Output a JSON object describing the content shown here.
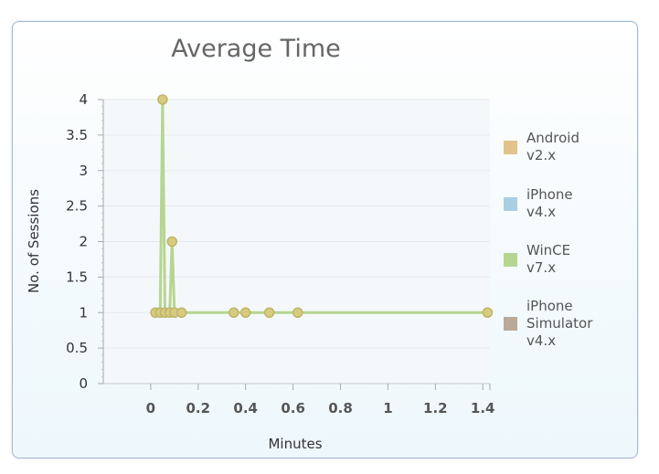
{
  "chart_data": {
    "type": "line",
    "title": "Average Time",
    "xlabel": "Minutes",
    "ylabel": "No. of Sessions",
    "xlim": [
      -0.2,
      1.43
    ],
    "ylim": [
      0,
      4
    ],
    "x_ticks": [
      "0",
      "0.2",
      "0.4",
      "0.6",
      "0.8",
      "1",
      "1.2",
      "1.4"
    ],
    "y_ticks": [
      "0",
      "0.5",
      "1",
      "1.5",
      "2",
      "2.5",
      "3",
      "3.5",
      "4"
    ],
    "legend_position": "right",
    "series": [
      {
        "name": "Android\nv2.x",
        "color": "#e2c48a",
        "x": [],
        "y": []
      },
      {
        "name": "iPhone\nv4.x",
        "color": "#a9cfe0",
        "x": [],
        "y": []
      },
      {
        "name": "WinCE\nv7.x",
        "color": "#b5d690",
        "x": [
          0.02,
          0.04,
          0.05,
          0.06,
          0.08,
          0.09,
          0.1,
          0.13,
          0.35,
          0.4,
          0.5,
          0.62,
          1.42
        ],
        "y": [
          1,
          1,
          4,
          1,
          1,
          2,
          1,
          1,
          1,
          1,
          1,
          1,
          1
        ]
      },
      {
        "name": "iPhone\nSimulator\nv4.x",
        "color": "#baa99a",
        "x": [],
        "y": []
      }
    ]
  }
}
